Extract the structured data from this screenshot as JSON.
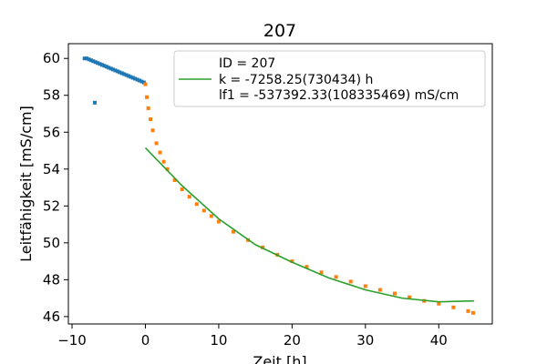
{
  "chart_data": {
    "type": "scatter",
    "title": "207",
    "xlabel": "Zeit [h]",
    "ylabel": "Leitfähigkeit [mS/cm]",
    "xlim": [
      -10.5,
      47.3
    ],
    "ylim": [
      45.6,
      60.8
    ],
    "xticks": [
      -10,
      0,
      10,
      20,
      30,
      40
    ],
    "yticks": [
      46,
      48,
      50,
      52,
      54,
      56,
      58,
      60
    ],
    "grid": false,
    "legend_position": "top-right",
    "legend": [
      "ID = 207",
      "k = -7258.25(730434) h",
      "lf1 = -537392.33(108335469) mS/cm"
    ],
    "colors": {
      "pre": "#1f77b4",
      "post": "#ff7f0e",
      "fit": "#2ca02c"
    },
    "series": [
      {
        "values": [
          [
            -8.3,
            60.0
          ],
          [
            -8.0,
            60.0
          ],
          [
            -7.7,
            59.95
          ],
          [
            -7.4,
            59.9
          ],
          [
            -7.1,
            59.85
          ],
          [
            -6.8,
            59.8
          ],
          [
            -6.5,
            59.75
          ],
          [
            -6.2,
            59.7
          ],
          [
            -5.9,
            59.65
          ],
          [
            -5.6,
            59.6
          ],
          [
            -5.3,
            59.55
          ],
          [
            -5.0,
            59.5
          ],
          [
            -4.7,
            59.45
          ],
          [
            -4.4,
            59.4
          ],
          [
            -4.1,
            59.35
          ],
          [
            -3.8,
            59.3
          ],
          [
            -3.5,
            59.25
          ],
          [
            -3.2,
            59.2
          ],
          [
            -2.9,
            59.15
          ],
          [
            -2.6,
            59.1
          ],
          [
            -2.3,
            59.05
          ],
          [
            -2.0,
            59.0
          ],
          [
            -1.7,
            58.95
          ],
          [
            -1.4,
            58.9
          ],
          [
            -1.1,
            58.85
          ],
          [
            -0.8,
            58.8
          ],
          [
            -0.5,
            58.75
          ],
          [
            -0.2,
            58.7
          ],
          [
            -6.9,
            57.6
          ]
        ]
      },
      {
        "values": [
          [
            0.0,
            58.6
          ],
          [
            0.2,
            57.9
          ],
          [
            0.4,
            57.3
          ],
          [
            0.7,
            56.7
          ],
          [
            1.0,
            56.1
          ],
          [
            1.5,
            55.4
          ],
          [
            2.0,
            54.9
          ],
          [
            2.5,
            54.4
          ],
          [
            3.0,
            54.0
          ],
          [
            4.0,
            53.4
          ],
          [
            5.0,
            52.9
          ],
          [
            6.0,
            52.5
          ],
          [
            7.0,
            52.1
          ],
          [
            8.0,
            51.75
          ],
          [
            9.0,
            51.45
          ],
          [
            10.0,
            51.15
          ],
          [
            12.0,
            50.6
          ],
          [
            14.0,
            50.15
          ],
          [
            16.0,
            49.75
          ],
          [
            18.0,
            49.35
          ],
          [
            20.0,
            49.0
          ],
          [
            22.0,
            48.7
          ],
          [
            24.0,
            48.4
          ],
          [
            26.0,
            48.15
          ],
          [
            28.0,
            47.9
          ],
          [
            30.0,
            47.65
          ],
          [
            32.0,
            47.45
          ],
          [
            34.0,
            47.25
          ],
          [
            36.0,
            47.05
          ],
          [
            38.0,
            46.85
          ],
          [
            40.0,
            46.7
          ],
          [
            42.0,
            46.5
          ],
          [
            44.0,
            46.3
          ],
          [
            44.7,
            46.2
          ]
        ]
      },
      {
        "values": [
          [
            0.0,
            55.15
          ],
          [
            5.0,
            53.1
          ],
          [
            10.0,
            51.3
          ],
          [
            15.0,
            49.9
          ],
          [
            20.0,
            48.95
          ],
          [
            25.0,
            48.1
          ],
          [
            30.0,
            47.45
          ],
          [
            35.0,
            47.0
          ],
          [
            40.0,
            46.8
          ],
          [
            44.8,
            46.85
          ]
        ]
      }
    ]
  }
}
